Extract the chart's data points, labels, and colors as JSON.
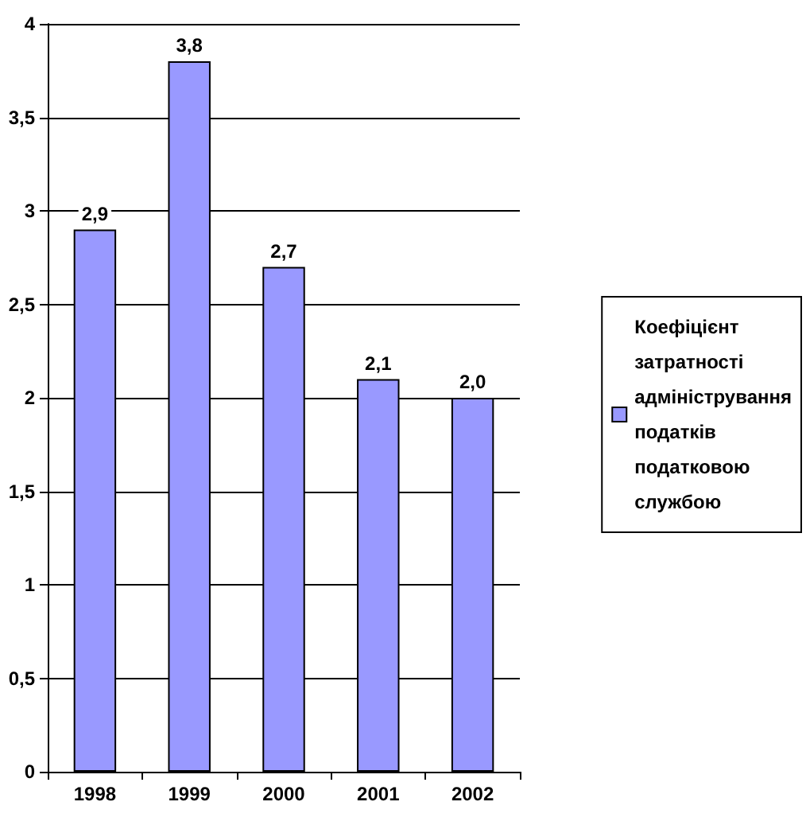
{
  "chart_data": {
    "type": "bar",
    "categories": [
      "1998",
      "1999",
      "2000",
      "2001",
      "2002"
    ],
    "series": [
      {
        "name": "Коефіцієнт затратності адміністрування податків податковою службою",
        "color": "#9999ff",
        "values": [
          2.9,
          3.8,
          2.7,
          2.1,
          2.0
        ],
        "value_labels": [
          "2,9",
          "3,8",
          "2,7",
          "2,1",
          "2,0"
        ]
      }
    ],
    "ylim": [
      0,
      4
    ],
    "yticks": [
      0,
      {
        "value": 0.5,
        "label": "0,5"
      },
      1,
      {
        "value": 1.5,
        "label": "1,5"
      },
      2,
      {
        "value": 2.5,
        "label": "2,5"
      },
      3,
      {
        "value": 3.5,
        "label": "3,5"
      },
      4
    ],
    "grid": "y",
    "legend": "right"
  }
}
